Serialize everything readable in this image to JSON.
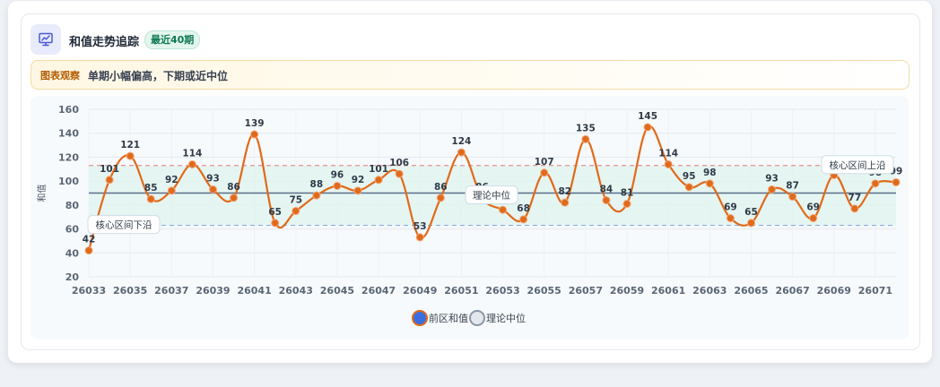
{
  "header": {
    "title": "和值走势追踪",
    "badge": "最近40期",
    "icon": "chart-presentation-icon"
  },
  "observation": {
    "tag": "图表观察",
    "text": "单期小幅偏高，下期或近中位"
  },
  "colors": {
    "line": "#e06a1b",
    "point": "#e06a1b",
    "band": "#dff3ee",
    "median_line": "#5b6f8a",
    "upper_line": "#e07a7a",
    "lower_line": "#7aa7e0",
    "legend_primary": "#3b6fe0"
  },
  "chart_data": {
    "type": "line",
    "ylabel": "和值",
    "ylim": [
      20,
      160
    ],
    "yticks": [
      20,
      40,
      60,
      80,
      100,
      120,
      140,
      160
    ],
    "x": [
      "26033",
      "26034",
      "26035",
      "26036",
      "26037",
      "26038",
      "26039",
      "26040",
      "26041",
      "26042",
      "26043",
      "26044",
      "26045",
      "26046",
      "26047",
      "26048",
      "26049",
      "26050",
      "26051",
      "26052",
      "26053",
      "26054",
      "26055",
      "26056",
      "26057",
      "26058",
      "26059",
      "26060",
      "26061",
      "26062",
      "26063",
      "26064",
      "26065",
      "26066",
      "26067",
      "26068",
      "26069",
      "26070",
      "26071",
      "26072"
    ],
    "xtick_labels": [
      "26033",
      "26035",
      "26037",
      "26039",
      "26041",
      "26043",
      "26045",
      "26047",
      "26049",
      "26051",
      "26053",
      "26055",
      "26057",
      "26059",
      "26061",
      "26063",
      "26065",
      "26067",
      "26069",
      "26071"
    ],
    "series": [
      {
        "name": "前区和值",
        "values": [
          42,
          101,
          121,
          85,
          92,
          114,
          93,
          86,
          139,
          65,
          75,
          88,
          96,
          92,
          101,
          106,
          53,
          86,
          124,
          86,
          76,
          68,
          107,
          82,
          135,
          84,
          81,
          145,
          114,
          95,
          98,
          69,
          65,
          93,
          87,
          69,
          105,
          77,
          98,
          99
        ]
      }
    ],
    "reference_lines": [
      {
        "name": "理论中位",
        "value": 90
      },
      {
        "name": "核心区间上沿",
        "value": 113
      },
      {
        "name": "核心区间下沿",
        "value": 63
      }
    ],
    "legend": [
      "前区和值",
      "理论中位"
    ],
    "legend_position": "bottom",
    "grid": true
  }
}
